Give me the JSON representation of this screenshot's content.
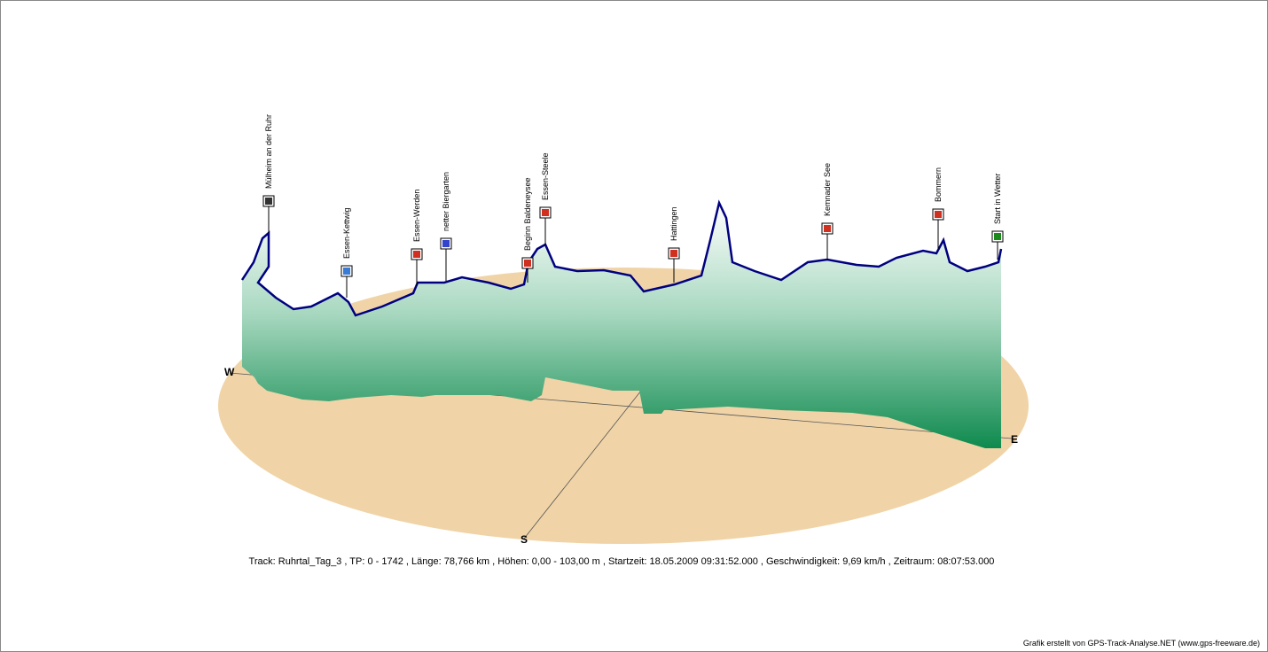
{
  "info": {
    "track": "Track: Ruhrtal_Tag_3",
    "tp": "TP: 0 - 1742",
    "length": "Länge: 78,766 km",
    "heights": "Höhen: 0,00 - 103,00 m",
    "start": "Startzeit: 18.05.2009 09:31:52.000",
    "speed": "Geschwindigkeit: 9,69 km/h",
    "duration": "Zeitraum: 08:07:53.000",
    "separator": " , "
  },
  "credit": "Grafik erstellt von GPS-Track-Analyse.NET (www.gps-freeware.de)",
  "compass": {
    "west": "W",
    "east": "E",
    "south": "S"
  },
  "waypoints": [
    {
      "label": "Mülheim an der Ruhr",
      "icon": "checkered-flag-icon",
      "color": "#333333"
    },
    {
      "label": "Essen-Kettwig",
      "icon": "camera-icon",
      "color": "#3a7bd5"
    },
    {
      "label": "Essen-Werden",
      "icon": "house-icon",
      "color": "#d03020"
    },
    {
      "label": "netter Biergarten",
      "icon": "beer-garden-icon",
      "color": "#3344cc"
    },
    {
      "label": "Beginn Baldeneysee",
      "icon": "lake-icon",
      "color": "#d03020"
    },
    {
      "label": "Essen-Steele",
      "icon": "house-icon",
      "color": "#d03020"
    },
    {
      "label": "Hattingen",
      "icon": "house-icon",
      "color": "#d03020"
    },
    {
      "label": "Kemnader See",
      "icon": "lake-icon",
      "color": "#d03020"
    },
    {
      "label": "Bommern",
      "icon": "house-icon",
      "color": "#d03020"
    },
    {
      "label": "Start in Wetter",
      "icon": "start-flag-icon",
      "color": "#1a8a1a"
    }
  ],
  "colors": {
    "ground": "#f0d4a8",
    "profile_dark": "#0e8a4e",
    "profile_light": "#ffffff",
    "track_line": "#000080"
  }
}
